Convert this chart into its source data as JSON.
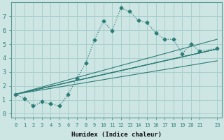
{
  "xlabel": "Humidex (Indice chaleur)",
  "xlim": [
    -0.5,
    23.5
  ],
  "ylim": [
    -0.3,
    8
  ],
  "xticks": [
    0,
    1,
    2,
    3,
    4,
    5,
    6,
    7,
    8,
    9,
    10,
    11,
    12,
    13,
    14,
    15,
    16,
    17,
    18,
    19,
    20,
    21,
    23
  ],
  "yticks": [
    0,
    1,
    2,
    3,
    4,
    5,
    6,
    7
  ],
  "bg_color": "#cde5e3",
  "grid_color": "#aacfcd",
  "line_color": "#2d7d78",
  "main_x": [
    0,
    1,
    2,
    3,
    4,
    5,
    6,
    7,
    8,
    9,
    10,
    11,
    12,
    13,
    14,
    15,
    16,
    17,
    18,
    19,
    20,
    21,
    23
  ],
  "main_y": [
    1.4,
    1.1,
    0.55,
    0.85,
    0.7,
    0.55,
    1.4,
    2.55,
    3.65,
    5.3,
    6.65,
    5.95,
    7.6,
    7.35,
    6.7,
    6.55,
    5.8,
    5.35,
    5.35,
    4.3,
    5.0,
    4.5,
    4.7
  ],
  "fan_lines": [
    {
      "x": [
        0,
        23
      ],
      "y": [
        1.4,
        4.65
      ]
    },
    {
      "x": [
        0,
        23
      ],
      "y": [
        1.4,
        4.65
      ]
    },
    {
      "x": [
        0,
        23
      ],
      "y": [
        1.4,
        4.65
      ]
    },
    {
      "x": [
        0,
        23
      ],
      "y": [
        1.4,
        5.35
      ]
    },
    {
      "x": [
        0,
        23
      ],
      "y": [
        1.4,
        3.8
      ]
    }
  ]
}
